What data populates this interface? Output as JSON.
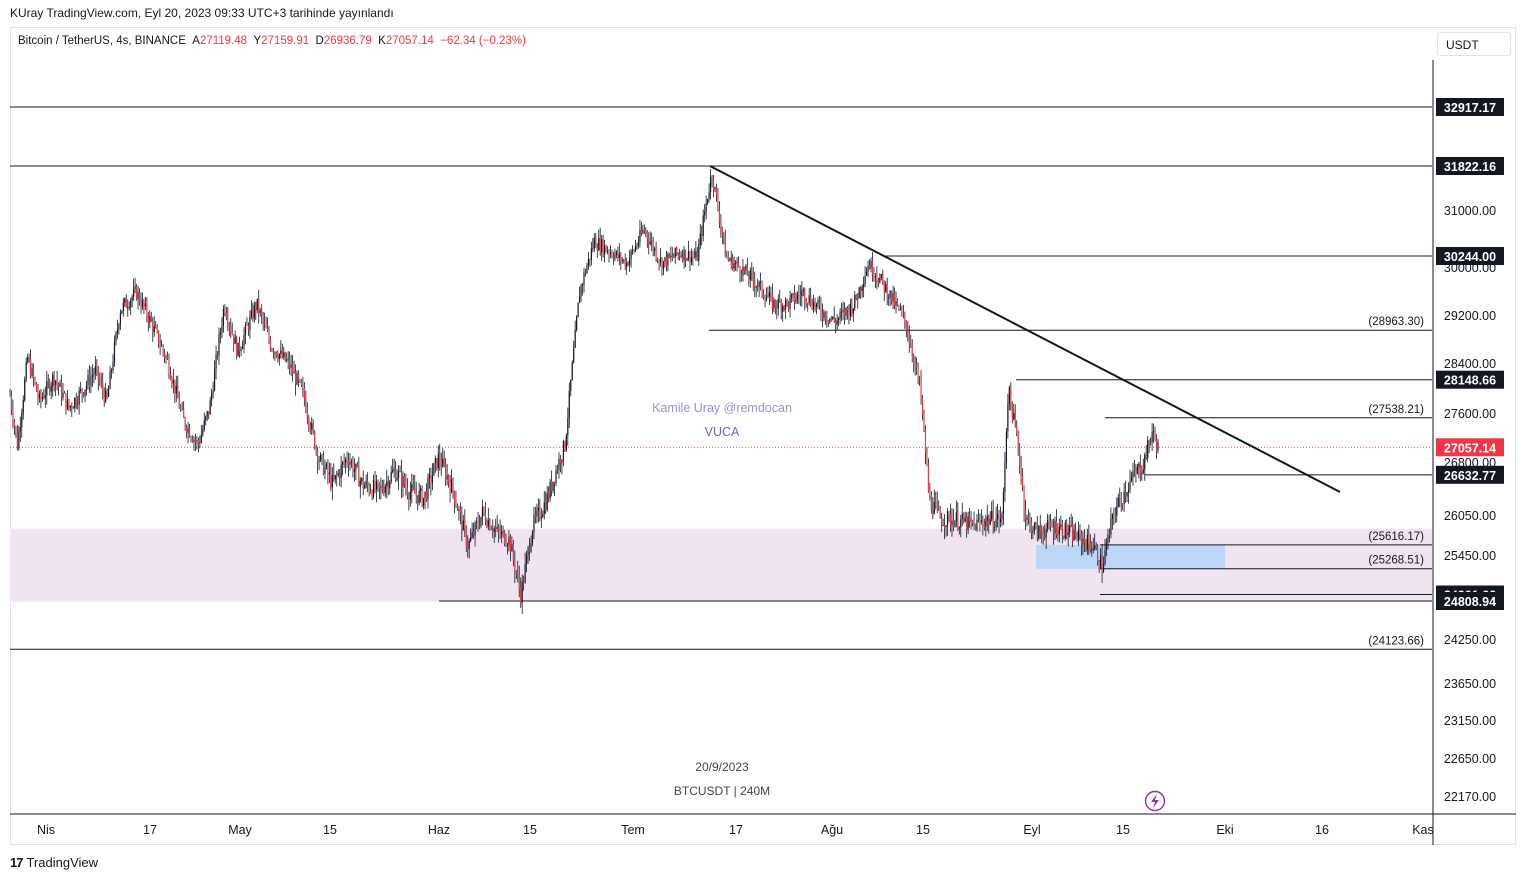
{
  "header": {
    "published_text": "KUray TradingView.com, Eyl 20, 2023 09:33 UTC+3 tarihinde yayınlandı"
  },
  "legend": {
    "symbol": "Bitcoin / TetherUS, 4s, BINANCE",
    "open_label": "A",
    "open": "27119.48",
    "high_label": "Y",
    "high": "27159.91",
    "low_label": "D",
    "low": "26936.79",
    "close_label": "K",
    "close": "27057.14",
    "change": "−62.34 (−0.23%)"
  },
  "currency": "USDT",
  "watermark": {
    "author": "Kamile Uray @remdocan",
    "tag": "VUCA",
    "date": "20/9/2023",
    "symbol_interval": "BTCUSDT | 240M"
  },
  "footer": {
    "brand": "TradingView",
    "logo_mark": "17"
  },
  "chart_data": {
    "type": "candlestick",
    "symbol": "BTCUSDT",
    "interval": "240M",
    "last_price": 27057.14,
    "last_price_label": "27057.14",
    "colors": {
      "up": "#089981",
      "down": "#f23645",
      "candle": "#131722",
      "zone": "#f1e4f1",
      "blue_zone": "#bbd6f7",
      "label_bg": "#131722",
      "last_price_bg": "#f23645"
    },
    "y_ticks": [
      "31000.00",
      "30000.00",
      "29200.00",
      "28400.00",
      "27600.00",
      "26800.00",
      "26050.00",
      "25450.00",
      "24250.00",
      "23650.00",
      "23150.00",
      "22650.00",
      "22170.00"
    ],
    "x_ticks": [
      "Nis",
      "17",
      "May",
      "15",
      "Haz",
      "15",
      "Tem",
      "17",
      "Ağu",
      "15",
      "Eyl",
      "15",
      "Eki",
      "16",
      "Kas"
    ],
    "horizontal_levels": [
      {
        "price": 32917.17,
        "label": "32917.17",
        "style": "boxed"
      },
      {
        "price": 31822.16,
        "label": "31822.16",
        "style": "boxed"
      },
      {
        "price": 30244.0,
        "label": "30244.00",
        "style": "boxed"
      },
      {
        "price": 28963.3,
        "label": "(28963.30)",
        "style": "plain"
      },
      {
        "price": 28148.66,
        "label": "28148.66",
        "style": "boxed"
      },
      {
        "price": 27538.21,
        "label": "(27538.21)",
        "style": "plain"
      },
      {
        "price": 26632.77,
        "label": "26632.77",
        "style": "boxed"
      },
      {
        "price": 25616.17,
        "label": "(25616.17)",
        "style": "plain"
      },
      {
        "price": 25268.51,
        "label": "(25268.51)",
        "style": "plain"
      },
      {
        "price": 24901.66,
        "label": "24901.66",
        "style": "boxed"
      },
      {
        "price": 24808.94,
        "label": "24808.94",
        "style": "boxed"
      },
      {
        "price": 24123.66,
        "label": "(24123.66)",
        "style": "plain"
      }
    ],
    "trendline": {
      "from": {
        "date": "Tem 13",
        "price": 31822.16
      },
      "to": {
        "date": "Eyl 29",
        "price": 26650
      }
    },
    "demand_zone": {
      "top": 25860,
      "bottom": 24800
    },
    "price_path": [
      [
        0,
        27900
      ],
      [
        5,
        27100
      ],
      [
        12,
        28500
      ],
      [
        20,
        27800
      ],
      [
        30,
        28200
      ],
      [
        40,
        27700
      ],
      [
        50,
        28000
      ],
      [
        58,
        28300
      ],
      [
        66,
        27800
      ],
      [
        75,
        29300
      ],
      [
        86,
        29600
      ],
      [
        96,
        29100
      ],
      [
        108,
        28400
      ],
      [
        118,
        27500
      ],
      [
        128,
        27100
      ],
      [
        136,
        27700
      ],
      [
        146,
        29400
      ],
      [
        155,
        28600
      ],
      [
        168,
        29400
      ],
      [
        178,
        28700
      ],
      [
        190,
        28400
      ],
      [
        200,
        27900
      ],
      [
        210,
        26900
      ],
      [
        220,
        26500
      ],
      [
        230,
        26900
      ],
      [
        240,
        26500
      ],
      [
        252,
        26400
      ],
      [
        262,
        26700
      ],
      [
        272,
        26400
      ],
      [
        282,
        26300
      ],
      [
        292,
        26900
      ],
      [
        302,
        26400
      ],
      [
        312,
        25600
      ],
      [
        322,
        26100
      ],
      [
        332,
        25800
      ],
      [
        340,
        25700
      ],
      [
        348,
        24900
      ],
      [
        356,
        25900
      ],
      [
        366,
        26300
      ],
      [
        378,
        27100
      ],
      [
        388,
        29600
      ],
      [
        398,
        30500
      ],
      [
        410,
        30300
      ],
      [
        420,
        30100
      ],
      [
        432,
        30700
      ],
      [
        444,
        30100
      ],
      [
        456,
        30300
      ],
      [
        468,
        30200
      ],
      [
        478,
        31700
      ],
      [
        488,
        30200
      ],
      [
        498,
        30000
      ],
      [
        510,
        29700
      ],
      [
        520,
        29400
      ],
      [
        530,
        29400
      ],
      [
        540,
        29600
      ],
      [
        552,
        29300
      ],
      [
        562,
        29100
      ],
      [
        575,
        29400
      ],
      [
        585,
        30100
      ],
      [
        598,
        29600
      ],
      [
        610,
        29100
      ],
      [
        620,
        28000
      ],
      [
        626,
        26300
      ],
      [
        634,
        26000
      ],
      [
        644,
        26000
      ],
      [
        656,
        25900
      ],
      [
        666,
        26000
      ],
      [
        676,
        26000
      ],
      [
        680,
        28000
      ],
      [
        686,
        27200
      ],
      [
        692,
        26000
      ],
      [
        700,
        25800
      ],
      [
        712,
        25900
      ],
      [
        722,
        25800
      ],
      [
        730,
        25700
      ],
      [
        738,
        25600
      ],
      [
        744,
        25300
      ],
      [
        752,
        26100
      ],
      [
        762,
        26500
      ],
      [
        772,
        26800
      ],
      [
        778,
        27300
      ],
      [
        782,
        27060
      ]
    ]
  }
}
